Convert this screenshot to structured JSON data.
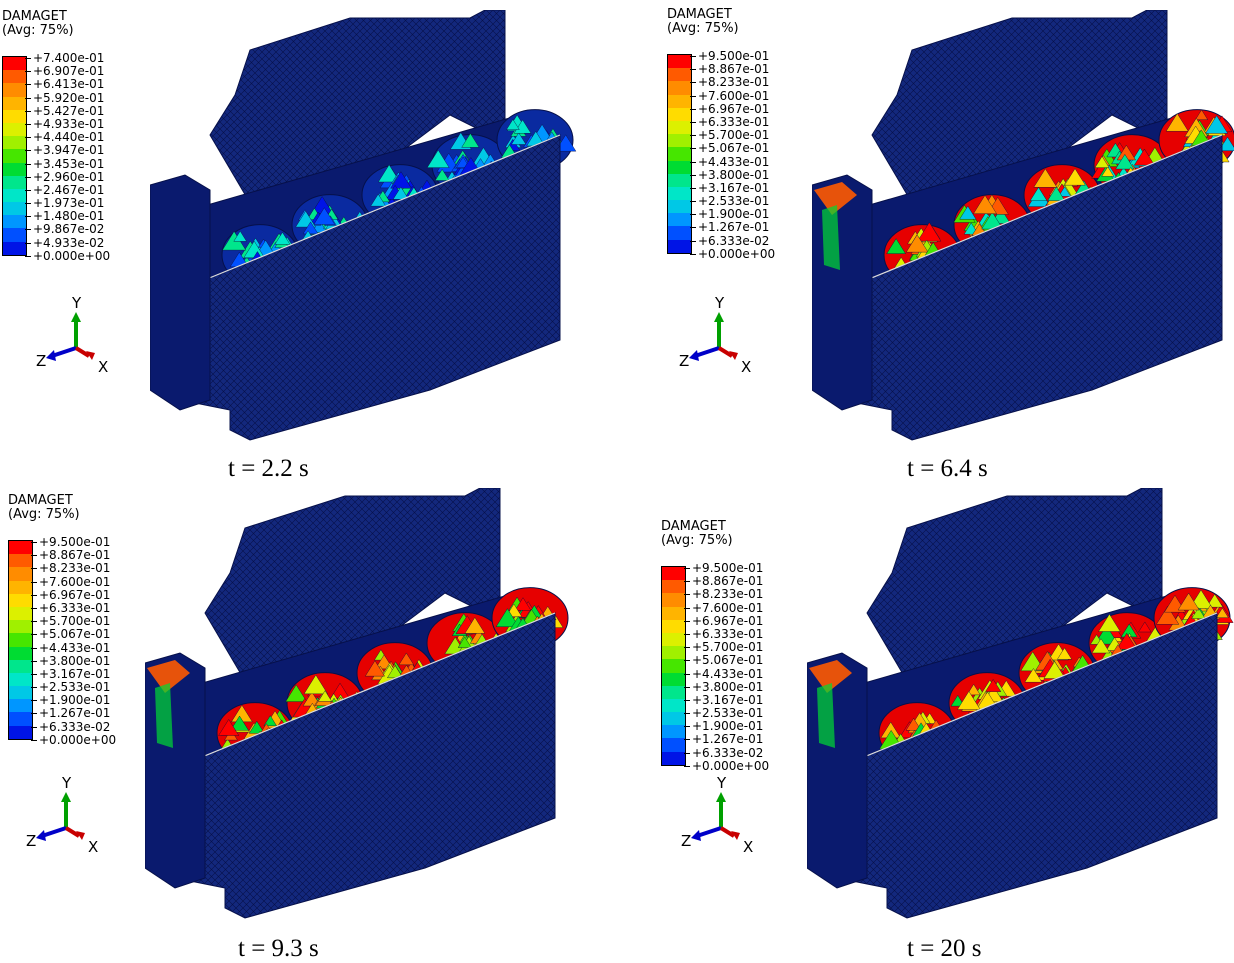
{
  "panels": [
    {
      "title": "DAMAGET",
      "subtitle": "(Avg: 75%)",
      "legend_values": [
        "+7.400e-01",
        "+6.907e-01",
        "+6.413e-01",
        "+5.920e-01",
        "+5.427e-01",
        "+4.933e-01",
        "+4.440e-01",
        "+3.947e-01",
        "+3.453e-01",
        "+2.960e-01",
        "+2.467e-01",
        "+1.973e-01",
        "+1.480e-01",
        "+9.867e-02",
        "+4.933e-02",
        "+0.000e+00"
      ],
      "caption": "t = 2.2 s",
      "axes": {
        "y": "Y",
        "z": "Z",
        "x": "X"
      },
      "damage_level": 0.25
    },
    {
      "title": "DAMAGET",
      "subtitle": "(Avg: 75%)",
      "legend_values": [
        "+9.500e-01",
        "+8.867e-01",
        "+8.233e-01",
        "+7.600e-01",
        "+6.967e-01",
        "+6.333e-01",
        "+5.700e-01",
        "+5.067e-01",
        "+4.433e-01",
        "+3.800e-01",
        "+3.167e-01",
        "+2.533e-01",
        "+1.900e-01",
        "+1.267e-01",
        "+6.333e-02",
        "+0.000e+00"
      ],
      "caption": "t = 6.4 s",
      "axes": {
        "y": "Y",
        "z": "Z",
        "x": "X"
      },
      "damage_level": 0.7
    },
    {
      "title": "DAMAGET",
      "subtitle": "(Avg: 75%)",
      "legend_values": [
        "+9.500e-01",
        "+8.867e-01",
        "+8.233e-01",
        "+7.600e-01",
        "+6.967e-01",
        "+6.333e-01",
        "+5.700e-01",
        "+5.067e-01",
        "+4.433e-01",
        "+3.800e-01",
        "+3.167e-01",
        "+2.533e-01",
        "+1.900e-01",
        "+1.267e-01",
        "+6.333e-02",
        "+0.000e+00"
      ],
      "caption": "t = 9.3 s",
      "axes": {
        "y": "Y",
        "z": "Z",
        "x": "X"
      },
      "damage_level": 0.85
    },
    {
      "title": "DAMAGET",
      "subtitle": "(Avg: 75%)",
      "legend_values": [
        "+9.500e-01",
        "+8.867e-01",
        "+8.233e-01",
        "+7.600e-01",
        "+6.967e-01",
        "+6.333e-01",
        "+5.700e-01",
        "+5.067e-01",
        "+4.433e-01",
        "+3.800e-01",
        "+3.167e-01",
        "+2.533e-01",
        "+1.900e-01",
        "+1.267e-01",
        "+6.333e-02",
        "+0.000e+00"
      ],
      "caption": "t = 20 s",
      "axes": {
        "y": "Y",
        "z": "Z",
        "x": "X"
      },
      "damage_level": 0.9
    }
  ],
  "colormap": [
    "#ff0000",
    "#ff5a00",
    "#ff8c00",
    "#ffb400",
    "#ffdc00",
    "#dcf000",
    "#a0f000",
    "#46e600",
    "#00dc32",
    "#00e68c",
    "#00e6c8",
    "#00c8e6",
    "#0096ff",
    "#0050ff",
    "#0014e6"
  ],
  "colors": {
    "mesh_dark": "#0a1a6e",
    "mesh_mid": "#13287d",
    "axis_x": "#c80000",
    "axis_y": "#00a000",
    "axis_z": "#0000c8"
  }
}
